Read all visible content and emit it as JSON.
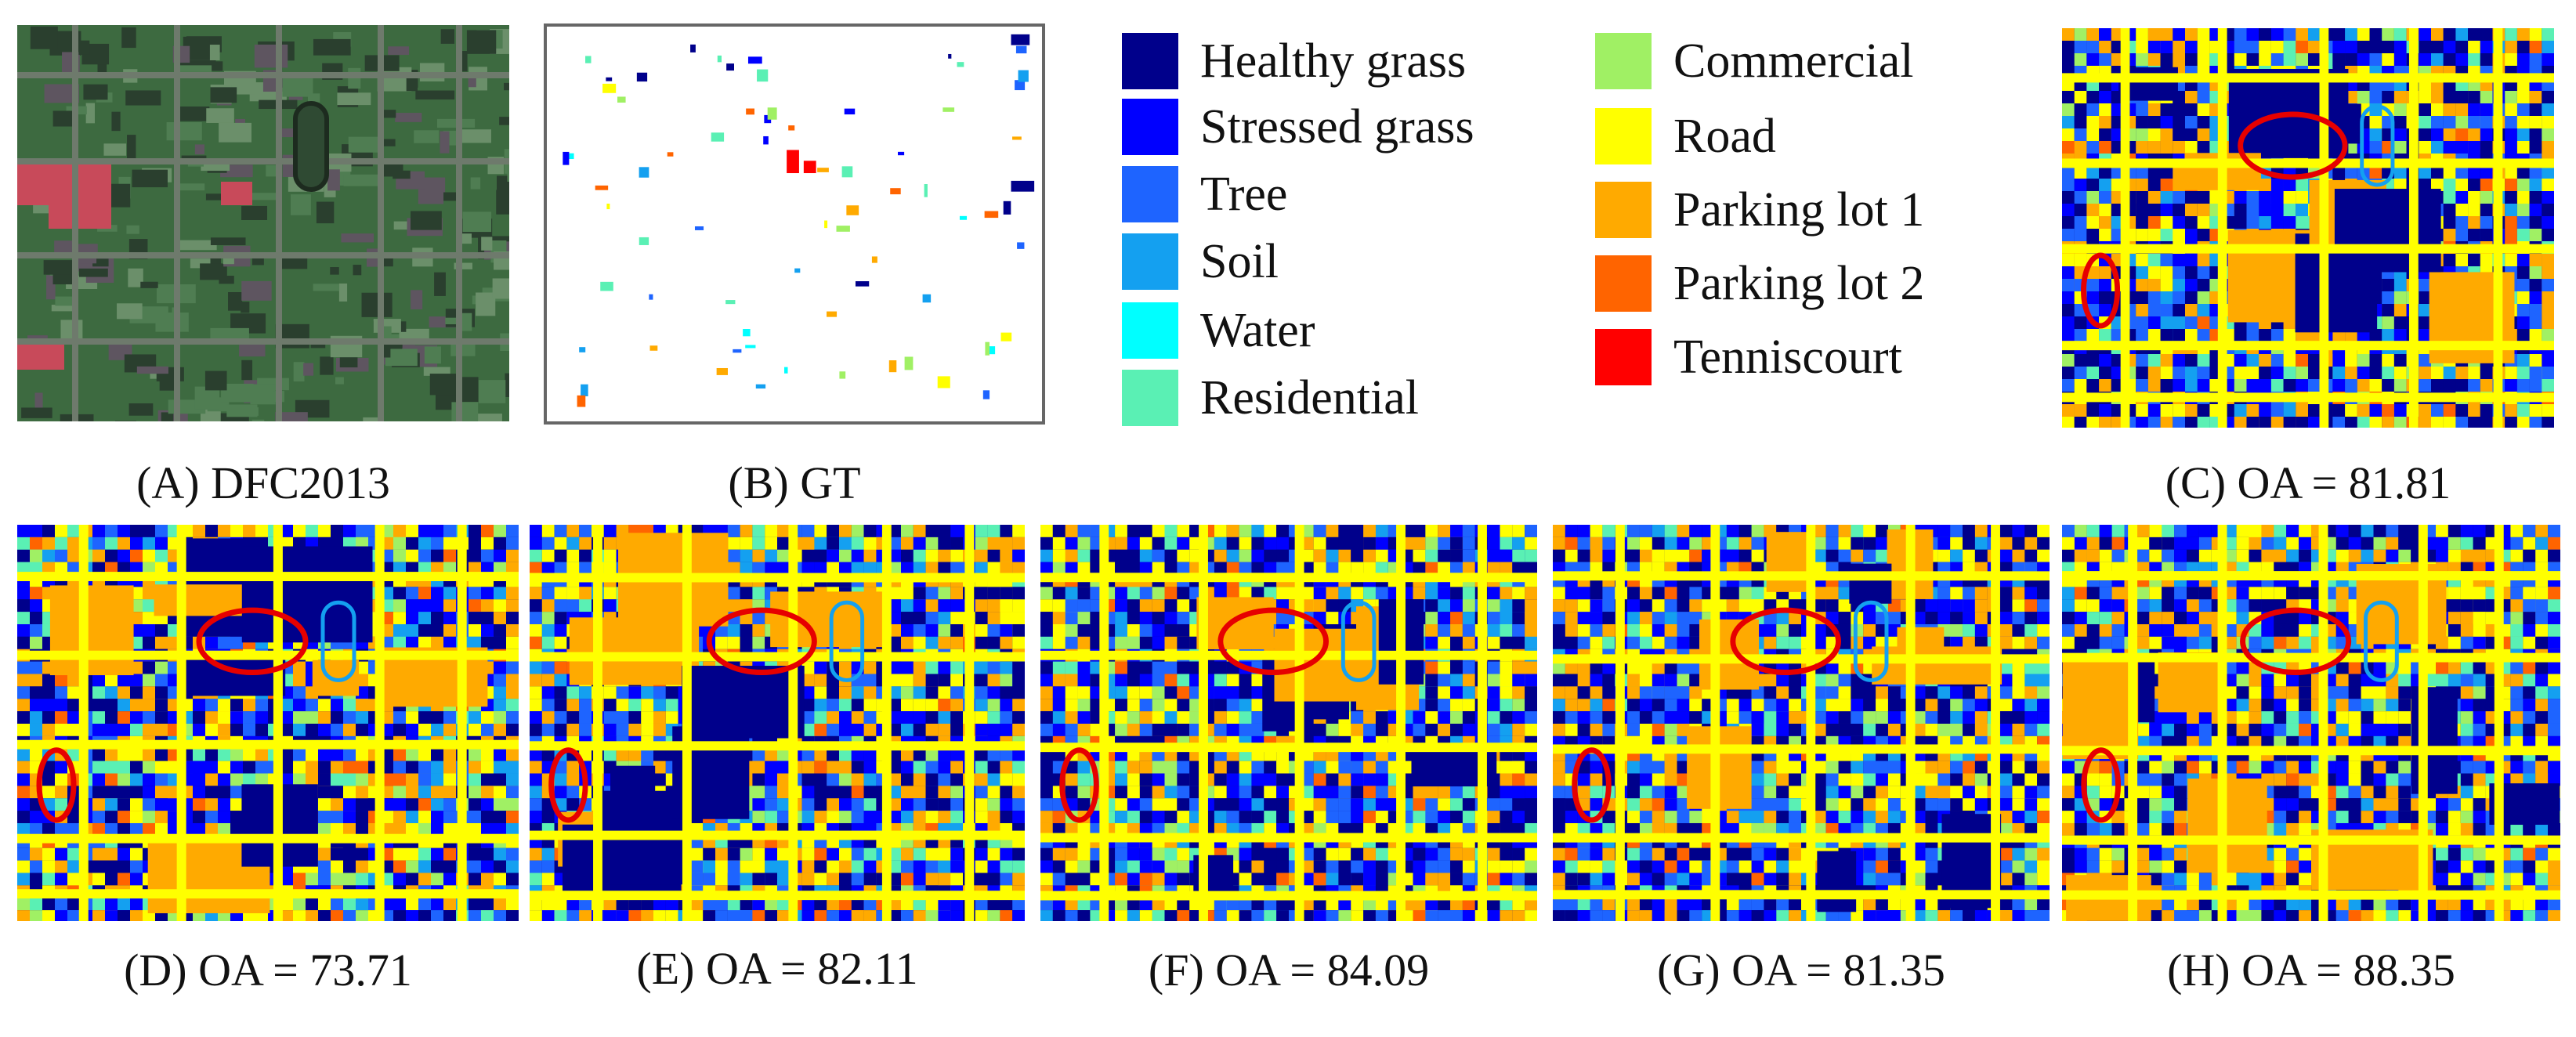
{
  "figure": {
    "colors": {
      "healthy_grass": "#00008b",
      "stressed_grass": "#0000ff",
      "tree": "#1e64ff",
      "soil": "#14a0f0",
      "water": "#00ffff",
      "residential": "#5af0b4",
      "commercial": "#a0f064",
      "road": "#ffff00",
      "parking_lot_1": "#ffaa00",
      "parking_lot_2": "#ff6400",
      "tenniscourt": "#ff0000",
      "highlight_ellipse": "#e60000",
      "dfc_background": "#3d6a40",
      "dfc_red": "#c84a5a"
    },
    "legend": [
      {
        "label": "Healthy grass",
        "color": "#00008b"
      },
      {
        "label": "Stressed grass",
        "color": "#0000ff"
      },
      {
        "label": "Tree",
        "color": "#1e64ff"
      },
      {
        "label": "Soil",
        "color": "#14a0f0"
      },
      {
        "label": "Water",
        "color": "#00ffff"
      },
      {
        "label": "Residential",
        "color": "#5af0b4"
      },
      {
        "label": "Commercial",
        "color": "#a0f064"
      },
      {
        "label": "Road",
        "color": "#ffff00"
      },
      {
        "label": "Parking lot 1",
        "color": "#ffaa00"
      },
      {
        "label": "Parking lot 2",
        "color": "#ff6400"
      },
      {
        "label": "Tenniscourt",
        "color": "#ff0000"
      }
    ],
    "panels": [
      {
        "id": "A",
        "caption": "(A) DFC2013"
      },
      {
        "id": "B",
        "caption": "(B) GT"
      },
      {
        "id": "C",
        "caption": "(C) OA = 81.81",
        "oa": 81.81
      },
      {
        "id": "D",
        "caption": "(D) OA = 73.71",
        "oa": 73.71
      },
      {
        "id": "E",
        "caption": "(E) OA = 82.11",
        "oa": 82.11
      },
      {
        "id": "F",
        "caption": "(F) OA = 84.09",
        "oa": 84.09
      },
      {
        "id": "G",
        "caption": "(G) OA = 81.35",
        "oa": 81.35
      },
      {
        "id": "H",
        "caption": "(H) OA = 88.35",
        "oa": 88.35
      }
    ]
  }
}
